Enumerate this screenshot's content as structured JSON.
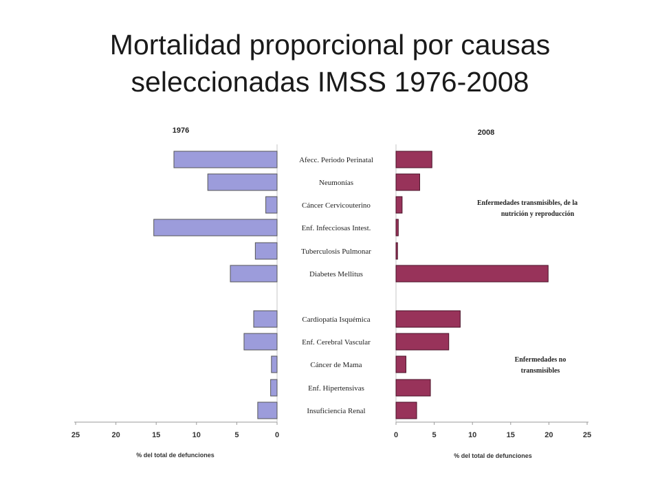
{
  "title": {
    "line1": "Mortalidad proporcional por causas",
    "line2": "seleccionadas IMSS 1976-2008"
  },
  "chart_data": {
    "type": "bar",
    "orientation": "horizontal-butterfly",
    "categories": [
      "Afecc. Periodo Perinatal",
      "Neumonías",
      "Cáncer Cervicouterino",
      "Enf. Infecciosas Intest.",
      "Tuberculosis Pulmonar",
      "Diabetes Mellitus",
      "Cardiopatía Isquémica",
      "Enf. Cerebral Vascular",
      "Cáncer de Mama",
      "Enf. Hipertensivas",
      "Insuficiencia Renal"
    ],
    "series": [
      {
        "name": "1976",
        "color": "#9c9cdb",
        "values": [
          12.8,
          8.6,
          1.4,
          15.3,
          2.7,
          5.8,
          2.9,
          4.1,
          0.7,
          0.8,
          2.4
        ]
      },
      {
        "name": "2008",
        "color": "#98335a",
        "values": [
          4.7,
          3.1,
          0.8,
          0.3,
          0.2,
          19.9,
          8.4,
          6.9,
          1.3,
          4.5,
          2.7
        ]
      }
    ],
    "xlim_left": [
      25,
      0
    ],
    "xlim_right": [
      0,
      25
    ],
    "ticks_left": [
      "25",
      "20",
      "15",
      "10",
      "5",
      "0"
    ],
    "ticks_right": [
      "0",
      "5",
      "10",
      "15",
      "20",
      "25"
    ],
    "xlabel_left": "%  del total de defunciones",
    "xlabel_right": "% del total de defunciones",
    "annotations": {
      "group1_line1": "Enfermedades transmisibles, de la",
      "group1_line2": "nutrición y reproducción",
      "group2_line1": "Enfermedades  no",
      "group2_line2": "transmisibles"
    }
  }
}
